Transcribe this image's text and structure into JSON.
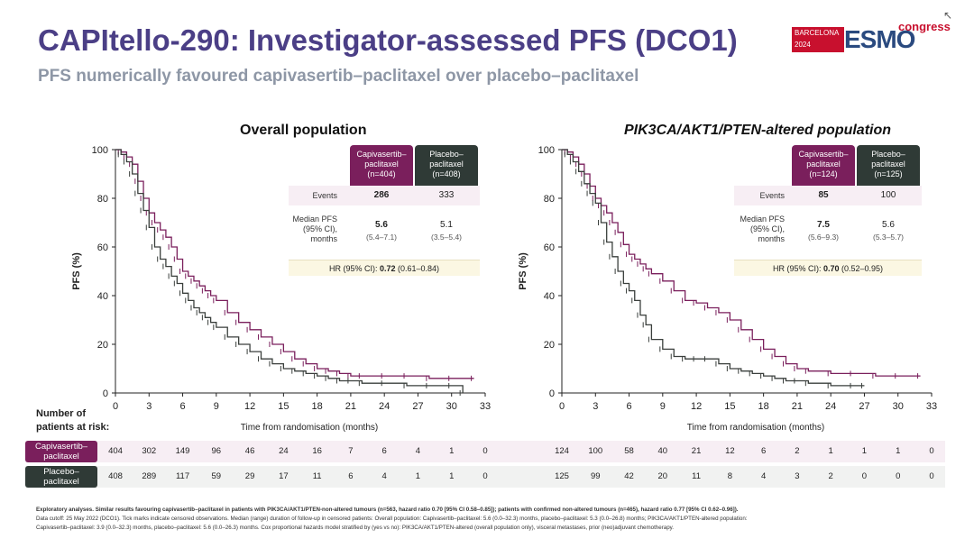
{
  "header": {
    "title": "CAPItello-290: Investigator-assessed PFS (DCO1)",
    "subtitle": "PFS numerically favoured capivasertib–paclitaxel over placebo–paclitaxel"
  },
  "logo": {
    "city": "BARCELONA",
    "year": "2024",
    "brand": "ESMO",
    "suffix": "congress"
  },
  "risk": {
    "title_line1": "Number of",
    "title_line2": "patients at risk:",
    "cap_label_1": "Capivasertib–",
    "cap_label_2": "paclitaxel",
    "pla_label_1": "Placebo–",
    "pla_label_2": "paclitaxel"
  },
  "colors": {
    "capivasertib": "#7a1f5c",
    "placebo": "#3a3f3c",
    "hr_bg": "#fbf7e3",
    "events_bg": "#f7eef4"
  },
  "panels": [
    {
      "title": "Overall population",
      "table": {
        "cap_header": [
          "Capivasertib–",
          "paclitaxel",
          "(n=404)"
        ],
        "pla_header": [
          "Placebo–",
          "paclitaxel",
          "(n=408)"
        ],
        "events_label": "Events",
        "cap_events": "286",
        "pla_events": "333",
        "median_label": [
          "Median PFS",
          "(95% CI),",
          "months"
        ],
        "cap_median": "5.6",
        "cap_ci": "(5.4–7.1)",
        "pla_median": "5.1",
        "pla_ci": "(3.5–5.4)",
        "hr_prefix": "HR (95% CI): ",
        "hr_value": "0.72",
        "hr_ci": " (0.61–0.84)"
      },
      "risk_cap": [
        "404",
        "302",
        "149",
        "96",
        "46",
        "24",
        "16",
        "7",
        "6",
        "4",
        "1",
        "0"
      ],
      "risk_pla": [
        "408",
        "289",
        "117",
        "59",
        "29",
        "17",
        "11",
        "6",
        "4",
        "1",
        "1",
        "0"
      ]
    },
    {
      "title": "PIK3CA/AKT1/PTEN-altered population",
      "table": {
        "cap_header": [
          "Capivasertib–",
          "paclitaxel",
          "(n=124)"
        ],
        "pla_header": [
          "Placebo–",
          "paclitaxel",
          "(n=125)"
        ],
        "events_label": "Events",
        "cap_events": "85",
        "pla_events": "100",
        "median_label": [
          "Median PFS",
          "(95% CI),",
          "months"
        ],
        "cap_median": "7.5",
        "cap_ci": "(5.6–9.3)",
        "pla_median": "5.6",
        "pla_ci": "(5.3–5.7)",
        "hr_prefix": "HR (95% CI): ",
        "hr_value": "0.70",
        "hr_ci": " (0.52–0.95)"
      },
      "risk_cap": [
        "124",
        "100",
        "58",
        "40",
        "21",
        "12",
        "6",
        "2",
        "1",
        "1",
        "1",
        "0"
      ],
      "risk_pla": [
        "125",
        "99",
        "42",
        "20",
        "11",
        "8",
        "4",
        "3",
        "2",
        "0",
        "0",
        "0"
      ]
    }
  ],
  "chart_data": [
    {
      "type": "line",
      "title": "Overall population",
      "xlabel": "Time from randomisation (months)",
      "ylabel": "PFS (%)",
      "xlim": [
        0,
        33
      ],
      "ylim": [
        0,
        100
      ],
      "xticks": [
        0,
        3,
        6,
        9,
        12,
        15,
        18,
        21,
        24,
        27,
        30,
        33
      ],
      "yticks": [
        0,
        20,
        40,
        60,
        80,
        100
      ],
      "series": [
        {
          "name": "Capivasertib–paclitaxel",
          "x": [
            0,
            0.5,
            1,
            1.5,
            2,
            2.5,
            3,
            3.5,
            4,
            4.5,
            5,
            5.5,
            6,
            6.5,
            7,
            7.5,
            8,
            8.5,
            9,
            10,
            11,
            12,
            13,
            14,
            15,
            16,
            17,
            18,
            19,
            20,
            21,
            22,
            24,
            26,
            28,
            30,
            32
          ],
          "y": [
            100,
            99,
            97,
            94,
            87,
            80,
            74,
            70,
            67,
            64,
            60,
            55,
            50,
            48,
            46,
            44,
            42,
            40,
            38,
            33,
            29,
            26,
            23,
            20,
            17,
            14,
            12,
            10,
            9,
            8,
            7,
            7,
            7,
            7,
            6,
            6,
            6
          ]
        },
        {
          "name": "Placebo–paclitaxel",
          "x": [
            0,
            0.5,
            1,
            1.5,
            2,
            2.5,
            3,
            3.5,
            4,
            4.5,
            5,
            5.5,
            6,
            6.5,
            7,
            7.5,
            8,
            8.5,
            9,
            10,
            11,
            12,
            13,
            14,
            15,
            16,
            17,
            18,
            19,
            20,
            21,
            22,
            24,
            26,
            28,
            30,
            31
          ],
          "y": [
            100,
            98,
            95,
            90,
            82,
            75,
            68,
            60,
            55,
            52,
            48,
            45,
            41,
            38,
            35,
            33,
            31,
            29,
            27,
            23,
            20,
            17,
            14,
            12,
            10,
            9,
            8,
            7,
            6,
            5,
            5,
            4,
            4,
            3,
            3,
            3,
            0
          ]
        }
      ]
    },
    {
      "type": "line",
      "title": "PIK3CA/AKT1/PTEN-altered population",
      "xlabel": "Time from randomisation (months)",
      "ylabel": "PFS (%)",
      "xlim": [
        0,
        33
      ],
      "ylim": [
        0,
        100
      ],
      "xticks": [
        0,
        3,
        6,
        9,
        12,
        15,
        18,
        21,
        24,
        27,
        30,
        33
      ],
      "yticks": [
        0,
        20,
        40,
        60,
        80,
        100
      ],
      "series": [
        {
          "name": "Capivasertib–paclitaxel",
          "x": [
            0,
            0.5,
            1,
            1.5,
            2,
            2.5,
            3,
            3.5,
            4,
            4.5,
            5,
            5.5,
            6,
            6.5,
            7,
            7.5,
            8,
            9,
            10,
            11,
            12,
            13,
            14,
            15,
            16,
            17,
            18,
            19,
            20,
            21,
            22,
            24,
            26,
            28,
            30,
            32
          ],
          "y": [
            100,
            99,
            97,
            94,
            90,
            85,
            80,
            77,
            74,
            70,
            66,
            61,
            57,
            55,
            53,
            51,
            49,
            46,
            42,
            38,
            37,
            35,
            33,
            30,
            26,
            22,
            18,
            15,
            12,
            10,
            9,
            8,
            8,
            7,
            7,
            7
          ]
        },
        {
          "name": "Placebo–paclitaxel",
          "x": [
            0,
            0.5,
            1,
            1.5,
            2,
            2.5,
            3,
            3.5,
            4,
            4.5,
            5,
            5.5,
            6,
            6.5,
            7,
            7.5,
            8,
            9,
            10,
            11,
            12,
            13,
            14,
            15,
            16,
            17,
            18,
            19,
            20,
            21,
            22,
            24,
            26,
            27
          ],
          "y": [
            100,
            98,
            95,
            91,
            86,
            82,
            78,
            70,
            62,
            56,
            50,
            45,
            42,
            38,
            32,
            28,
            22,
            18,
            15,
            14,
            14,
            14,
            12,
            10,
            9,
            8,
            7,
            6,
            5,
            5,
            4,
            3,
            3,
            3
          ]
        }
      ]
    }
  ],
  "footnotes": {
    "line1_bold": "Exploratory analyses. Similar results favouring capivasertib–paclitaxel in patients with PIK3CA/AKT1/PTEN-non-altered tumours (n=563, hazard ratio 0.70 [95% CI 0.58–0.85]); patients with confirmed non-altered tumours (n=465), hazard ratio 0.77 [95% CI 0.62–0.96]).",
    "line2": "Data cutoff: 25 May 2022 (DCO1). Tick marks indicate censored observations. Median (range) duration of follow-up in censored patients: Overall population: Capivasertib–paclitaxel: 5.6 (0.0–32.3) months, placebo–paclitaxel: 5.3 (0.0–26.8) months; PIK3CA/AKT1/PTEN-altered population:",
    "line3": "Capivasertib–paclitaxel: 3.9 (0.0–32.3) months, placebo–paclitaxel: 5.6 (0.0–26.3) months. Cox proportional hazards model stratified by (yes vs no): PIK3CA/AKT1/PTEN-altered (overall population only), visceral metastases, prior (neo)adjuvant chemotherapy."
  }
}
